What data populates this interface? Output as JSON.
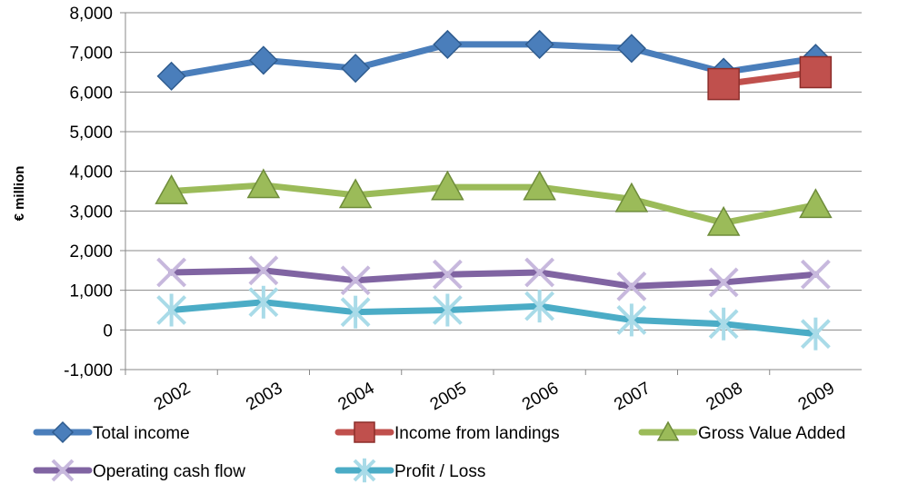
{
  "chart_data": {
    "type": "line",
    "x": [
      "2002",
      "2003",
      "2004",
      "2005",
      "2006",
      "2007",
      "2008",
      "2009"
    ],
    "ylabel": "€ million",
    "xlabel": "",
    "ylim": [
      -1000,
      8000
    ],
    "yticks": [
      -1000,
      0,
      1000,
      2000,
      3000,
      4000,
      5000,
      6000,
      7000,
      8000
    ],
    "ytick_labels": [
      "-1,000",
      "0",
      "1,000",
      "2,000",
      "3,000",
      "4,000",
      "5,000",
      "6,000",
      "7,000",
      "8,000"
    ],
    "grid": true,
    "legend_position": "bottom",
    "series": [
      {
        "name": "Total income",
        "color": "#4a7ebb",
        "marker": "diamond",
        "values": [
          6400,
          6800,
          6600,
          7200,
          7200,
          7100,
          6500,
          6850
        ]
      },
      {
        "name": "Income from landings",
        "color": "#c0504d",
        "marker": "square",
        "values": [
          null,
          null,
          null,
          null,
          null,
          null,
          6200,
          6500
        ]
      },
      {
        "name": "Gross Value Added",
        "color": "#9bbb59",
        "marker": "triangle",
        "values": [
          3500,
          3650,
          3400,
          3600,
          3600,
          3300,
          2700,
          3150
        ]
      },
      {
        "name": "Operating cash flow",
        "color": "#8064a2",
        "marker": "x",
        "values": [
          1450,
          1500,
          1250,
          1400,
          1450,
          1100,
          1200,
          1400
        ]
      },
      {
        "name": "Profit / Loss",
        "color": "#4bacc6",
        "marker": "star",
        "values": [
          500,
          700,
          450,
          500,
          600,
          250,
          150,
          -100
        ]
      }
    ]
  }
}
